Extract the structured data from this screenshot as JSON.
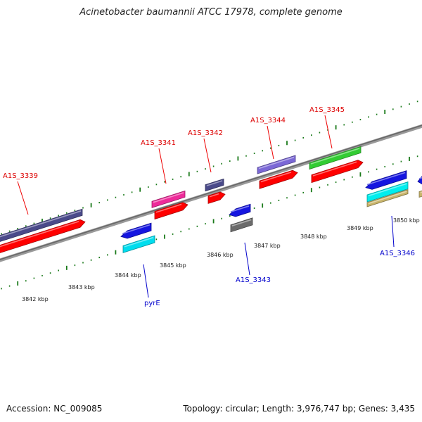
{
  "title": "Acinetobacter baumannii ATCC 17978, complete genome",
  "footer": {
    "accession": "Accession: NC_009085",
    "summary": "Topology: circular; Length: 3,976,747 bp; Genes: 3,435"
  },
  "colors": {
    "forward_label": "#dd0000",
    "reverse_label": "#0000cc",
    "backbone": "#888888",
    "tick": "#1a7a1a"
  },
  "scale_ticks": [
    {
      "label": "3842 kbp"
    },
    {
      "label": "3843 kbp"
    },
    {
      "label": "3844 kbp"
    },
    {
      "label": "3845 kbp"
    },
    {
      "label": "3846 kbp"
    },
    {
      "label": "3847 kbp"
    },
    {
      "label": "3848 kbp"
    },
    {
      "label": "3849 kbp"
    },
    {
      "label": "3850 kbp"
    }
  ],
  "forward_genes": [
    {
      "name": "A1S_3339",
      "color": "#4a4a8a"
    },
    {
      "name": "A1S_3341",
      "color": "#ee2b9a"
    },
    {
      "name": "A1S_3342",
      "color": "#4a4a8a"
    },
    {
      "name": "A1S_3344",
      "color": "#7b68d6"
    },
    {
      "name": "A1S_3345",
      "color": "#33cc33"
    }
  ],
  "reverse_genes": [
    {
      "name": "pyrE",
      "color": "#00ddee"
    },
    {
      "name": "A1S_3343",
      "color": "#6b6b6b"
    },
    {
      "name": "A1S_3346",
      "color": "#00eeee",
      "color2": "#c8b46a"
    }
  ]
}
